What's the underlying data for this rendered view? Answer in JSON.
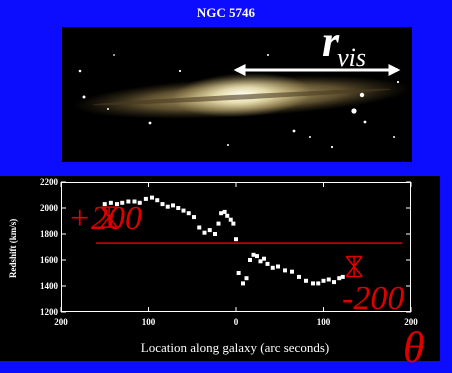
{
  "galaxy": {
    "title": "NGC 5746"
  },
  "rvis": {
    "symbol": "r",
    "subscript": "vis"
  },
  "annotations": {
    "plus": "+200",
    "minus": "-200",
    "theta": "θ"
  },
  "colors": {
    "background": "#0c0cff",
    "annotation_red": "#dd0000",
    "points": "#ffffff"
  },
  "chart_data": {
    "type": "scatter",
    "title": "",
    "xlabel": "Location along galaxy (arc seconds)",
    "ylabel": "Redshift (km/s)",
    "xlim": [
      -200,
      200
    ],
    "ylim": [
      1200,
      2200
    ],
    "x_tick_values": [
      -200,
      -100,
      0,
      100,
      200
    ],
    "x_tick_labels": [
      "200",
      "100",
      "0",
      "100",
      "200"
    ],
    "y_ticks": [
      1200,
      1400,
      1600,
      1800,
      2000,
      2200
    ],
    "y_tick_labels": [
      "1200",
      "1400",
      "1600",
      "1800",
      "2000",
      "2200"
    ],
    "grid": false,
    "series": [
      {
        "values_xy": [
          [
            -150,
            2030
          ],
          [
            -143,
            2040
          ],
          [
            -136,
            2030
          ],
          [
            -130,
            2040
          ],
          [
            -123,
            2050
          ],
          [
            -116,
            2050
          ],
          [
            -110,
            2040
          ],
          [
            -103,
            2070
          ],
          [
            -96,
            2080
          ],
          [
            -90,
            2060
          ],
          [
            -84,
            2030
          ],
          [
            -78,
            2010
          ],
          [
            -72,
            2020
          ],
          [
            -66,
            2000
          ],
          [
            -60,
            1980
          ],
          [
            -54,
            1960
          ],
          [
            -48,
            1930
          ],
          [
            -42,
            1850
          ],
          [
            -36,
            1810
          ],
          [
            -30,
            1830
          ],
          [
            -24,
            1800
          ],
          [
            -20,
            1880
          ],
          [
            -17,
            1960
          ],
          [
            -13,
            1970
          ],
          [
            -10,
            1940
          ],
          [
            -6,
            1910
          ],
          [
            -3,
            1880
          ],
          [
            0,
            1760
          ],
          [
            3,
            1500
          ],
          [
            8,
            1420
          ],
          [
            12,
            1460
          ],
          [
            16,
            1600
          ],
          [
            20,
            1640
          ],
          [
            24,
            1630
          ],
          [
            28,
            1590
          ],
          [
            32,
            1610
          ],
          [
            36,
            1570
          ],
          [
            42,
            1540
          ],
          [
            48,
            1550
          ],
          [
            56,
            1520
          ],
          [
            64,
            1510
          ],
          [
            72,
            1470
          ],
          [
            80,
            1440
          ],
          [
            88,
            1420
          ],
          [
            94,
            1420
          ],
          [
            100,
            1440
          ],
          [
            106,
            1450
          ],
          [
            112,
            1430
          ],
          [
            118,
            1460
          ],
          [
            122,
            1470
          ]
        ]
      }
    ],
    "overlays": {
      "horizontal_line_y": 1730,
      "line_x_range": [
        -160,
        190
      ],
      "markers": [
        {
          "x": -145,
          "y": 1930
        },
        {
          "x": 135,
          "y": 1550
        }
      ]
    }
  }
}
